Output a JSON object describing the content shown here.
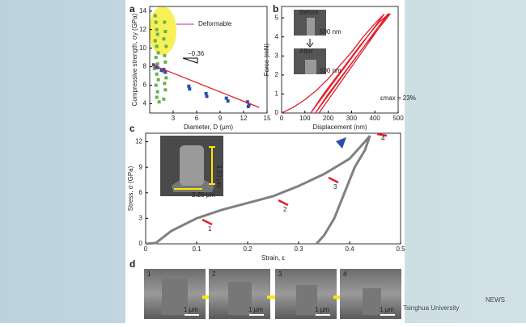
{
  "chart_data": [
    {
      "type": "scatter",
      "label": "a",
      "xlabel": "Diameter, D (μm)",
      "ylabel": "Compressive strength, σy (GPa)",
      "xlim": [
        0,
        15
      ],
      "ylim": [
        3,
        14.5
      ],
      "xticks": [
        3,
        6,
        9,
        12,
        15
      ],
      "yticks": [
        4,
        6,
        8,
        10,
        12,
        14
      ],
      "annotations": [
        "Deformable",
        "−0.36"
      ],
      "series": [
        {
          "color": "#6ab04c",
          "x": [
            0.7,
            0.8,
            0.9,
            1.0,
            0.7,
            0.9,
            1.1,
            0.8,
            1.0,
            0.6,
            0.9,
            1.1,
            0.8,
            1.0,
            0.9,
            1.2,
            1.9,
            2.0,
            1.8,
            2.1,
            1.9,
            2.0,
            1.8,
            2.1,
            1.9,
            2.0,
            1.8
          ],
          "values": [
            13.5,
            12.8,
            12,
            11.5,
            10.8,
            10.2,
            9.5,
            9,
            8.3,
            7.8,
            7.2,
            6.6,
            6,
            5.3,
            4.7,
            4.2,
            12.8,
            11.8,
            11,
            10.2,
            9.2,
            8.5,
            7.5,
            6.8,
            6.2,
            5.5,
            4.5
          ]
        },
        {
          "color": "#2a4fa8",
          "x": [
            0.5,
            0.8,
            1.0,
            1.5,
            2.0,
            1.8,
            5.0,
            5.1,
            7.2,
            7.3,
            9.8,
            10.0,
            12.5,
            12.7,
            12.6
          ],
          "values": [
            8.2,
            8.0,
            7.9,
            7.6,
            7.4,
            7.7,
            5.9,
            5.6,
            5.1,
            4.8,
            4.6,
            4.3,
            4.2,
            3.9,
            3.7
          ]
        },
        {
          "color": "#e0202a",
          "line": true,
          "x": [
            0.3,
            14
          ],
          "values": [
            8.2,
            3.6
          ]
        }
      ]
    },
    {
      "type": "line",
      "label": "b",
      "xlabel": "Displacement (nm)",
      "ylabel": "Force (mN)",
      "xlim": [
        0,
        500
      ],
      "ylim": [
        0,
        5.6
      ],
      "xticks": [
        0,
        100,
        200,
        300,
        400,
        500
      ],
      "yticks": [
        0,
        1,
        2,
        3,
        4,
        5
      ],
      "annotations": [
        "εmax = 23%",
        "Before",
        "500 nm",
        "After",
        "500 nm"
      ],
      "series": [
        {
          "color": "#e0202a",
          "x": [
            0,
            50,
            100,
            150,
            200,
            250,
            300,
            350,
            400,
            440
          ],
          "values": [
            0,
            0.3,
            0.7,
            1.2,
            1.8,
            2.5,
            3.2,
            4,
            4.7,
            5.2
          ]
        },
        {
          "color": "#e0202a",
          "x": [
            440,
            125,
            180,
            260,
            340,
            420,
            460,
            455,
            145,
            200,
            280,
            360,
            440,
            465,
            460,
            160
          ],
          "values": [
            5.2,
            0,
            1,
            2.3,
            3.6,
            4.8,
            5.2,
            5.2,
            0,
            1,
            2.3,
            3.6,
            4.8,
            5.2,
            5.2,
            0
          ]
        }
      ]
    },
    {
      "type": "line",
      "label": "c",
      "xlabel": "Strain, ε",
      "ylabel": "Stress, σ (GPa)",
      "xlim": [
        0,
        0.5
      ],
      "ylim": [
        0,
        13
      ],
      "xticks": [
        0,
        0.1,
        0.2,
        0.3,
        0.4,
        0.5
      ],
      "yticks": [
        0,
        3,
        6,
        9,
        12
      ],
      "annotations": [
        "1",
        "2",
        "3",
        "4",
        "3.23 μm",
        "2.25 μm"
      ],
      "series": [
        {
          "color": "#808080",
          "x": [
            0,
            0.02,
            0.05,
            0.1,
            0.15,
            0.2,
            0.25,
            0.3,
            0.35,
            0.4,
            0.43,
            0.44
          ],
          "values": [
            0,
            0.1,
            1.5,
            3,
            4,
            4.8,
            5.6,
            6.8,
            8.2,
            10,
            12,
            12.7
          ]
        },
        {
          "color": "#808080",
          "x": [
            0.44,
            0.43,
            0.41,
            0.39,
            0.37,
            0.35,
            0.335
          ],
          "values": [
            12.7,
            11,
            9,
            6,
            3,
            1,
            0
          ]
        }
      ]
    }
  ],
  "panel_d": {
    "label": "d",
    "frames": [
      {
        "label": "1",
        "scale": "1 μm"
      },
      {
        "label": "2",
        "scale": "1 μm"
      },
      {
        "label": "3",
        "scale": "1 μm"
      },
      {
        "label": "4",
        "scale": "1 μm"
      }
    ]
  },
  "watermark": {
    "name": "Tsinghua University",
    "news": "NEWS"
  }
}
